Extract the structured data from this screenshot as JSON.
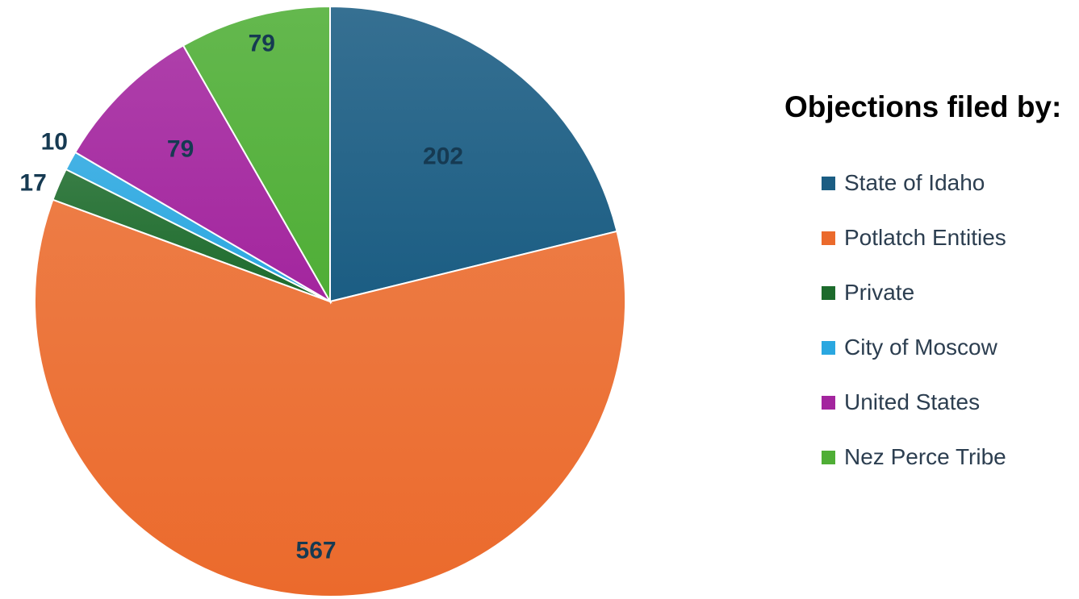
{
  "chart_data": {
    "type": "pie",
    "legend_title": "Objections filed by:",
    "legend_position": "right",
    "slices": [
      {
        "name": "State of Idaho",
        "value": 202,
        "color": "#1b5d83",
        "label": "202"
      },
      {
        "name": "Potlatch Entities",
        "value": 567,
        "color": "#eb6a2c",
        "label": "567"
      },
      {
        "name": "Private",
        "value": 17,
        "color": "#1d6b2c",
        "label": "17"
      },
      {
        "name": "City of Moscow",
        "value": 10,
        "color": "#2aa7e0",
        "label": "10"
      },
      {
        "name": "United States",
        "value": 79,
        "color": "#a3259e",
        "label": "79"
      },
      {
        "name": "Nez Perce Tribe",
        "value": 79,
        "color": "#4fae36",
        "label": "79"
      }
    ]
  }
}
